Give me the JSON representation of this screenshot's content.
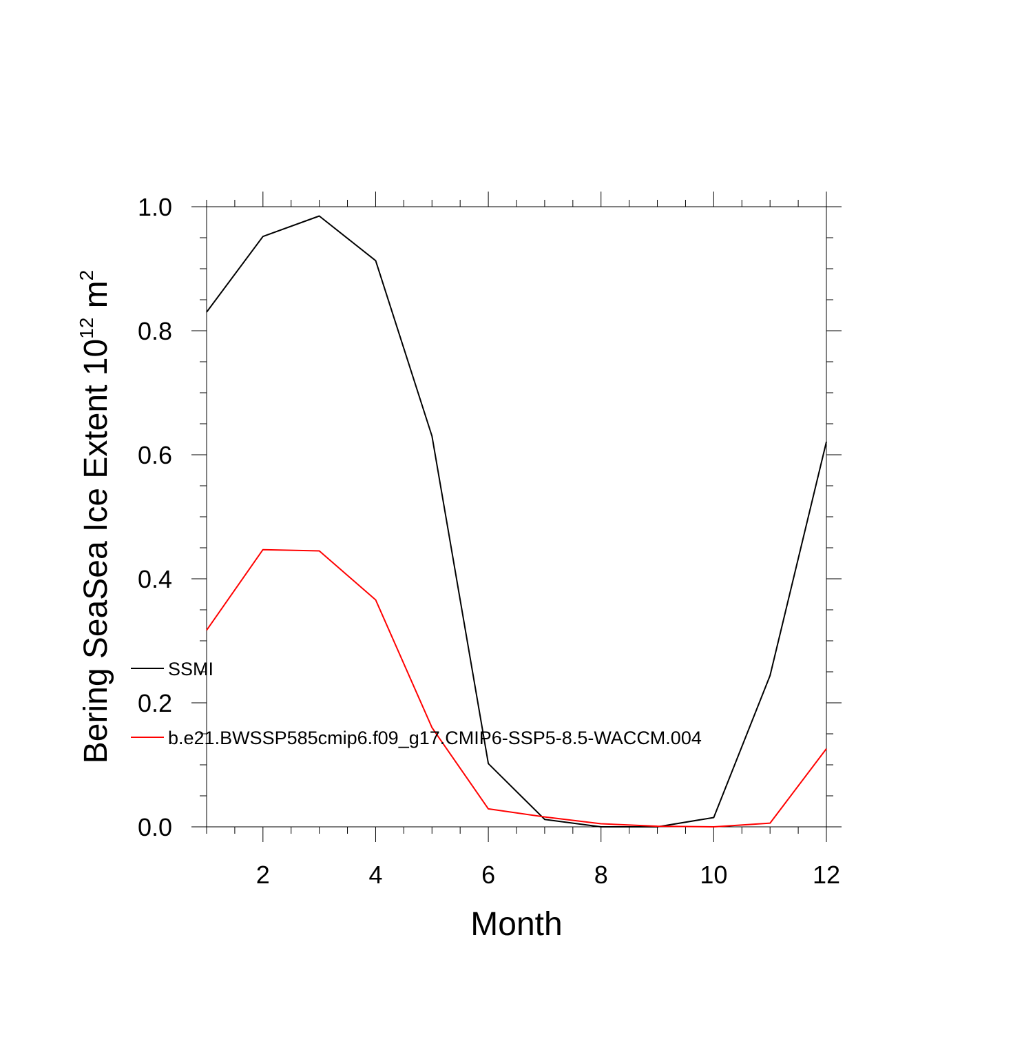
{
  "chart_data": {
    "type": "line",
    "xlabel": "Month",
    "ylabel_main": "Bering SeaSea Ice Extent 10",
    "ylabel_exp": "12",
    "ylabel_unit": " m",
    "ylabel_unit_exp": "2",
    "xlim": [
      1,
      12
    ],
    "ylim": [
      0,
      1.0
    ],
    "x_ticks": [
      2,
      4,
      6,
      8,
      10,
      12
    ],
    "x_tick_labels": [
      "2",
      "4",
      "6",
      "8",
      "10",
      "12"
    ],
    "y_ticks": [
      0,
      0.2,
      0.4,
      0.6,
      0.8,
      1.0
    ],
    "y_tick_labels": [
      "0.0",
      "0.2",
      "0.4",
      "0.6",
      "0.8",
      "1.0"
    ],
    "x": [
      1,
      2,
      3,
      4,
      5,
      6,
      7,
      8,
      9,
      10,
      11,
      12
    ],
    "series": [
      {
        "name": "SSMI",
        "color": "#000000",
        "values": [
          0.83,
          0.952,
          0.985,
          0.913,
          0.63,
          0.102,
          0.012,
          0.0,
          0.0,
          0.015,
          0.244,
          0.621
        ]
      },
      {
        "name": "b.e21.BWSSP585cmip6.f09_g17.CMIP6-SSP5-8.5-WACCM.004",
        "color": "#ff0000",
        "values": [
          0.317,
          0.447,
          0.445,
          0.366,
          0.16,
          0.029,
          0.016,
          0.005,
          0.001,
          0.0,
          0.006,
          0.126
        ]
      }
    ],
    "legend_position": "left, overlapping plot area"
  }
}
